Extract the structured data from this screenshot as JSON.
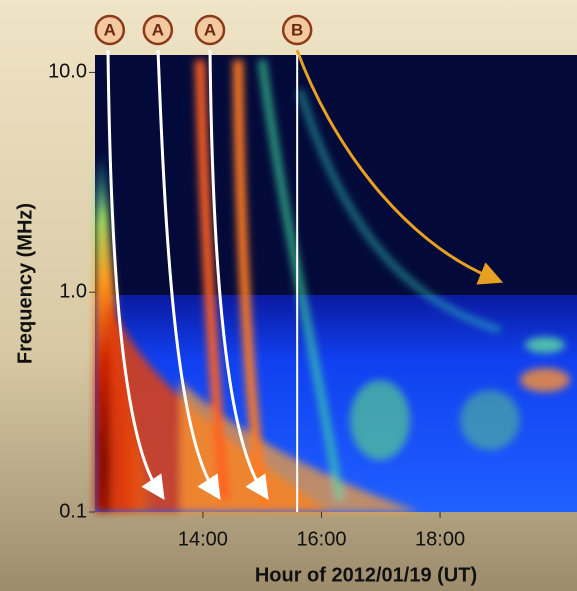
{
  "chart_data": {
    "type": "spectrogram",
    "x_label": "Hour of 2012/01/19 (UT)",
    "y_label": "Frequency (MHz)",
    "log_y": true,
    "xlim": [
      12.18,
      20.31
    ],
    "ylim": [
      0.1,
      12
    ],
    "xticks": [
      {
        "value": 14,
        "label": "14:00"
      },
      {
        "value": 16,
        "label": "16:00"
      },
      {
        "value": 18,
        "label": "18:00"
      }
    ],
    "yticks": [
      0.1,
      {
        "value": 1,
        "label": "1.0"
      },
      {
        "value": 10,
        "label": "10.0"
      }
    ],
    "annotations": [
      {
        "label": "A",
        "x": 12.43
      },
      {
        "label": "A",
        "x": 13.24
      },
      {
        "label": "A",
        "x": 14.12
      },
      {
        "label": "B",
        "x": 15.59
      }
    ]
  }
}
